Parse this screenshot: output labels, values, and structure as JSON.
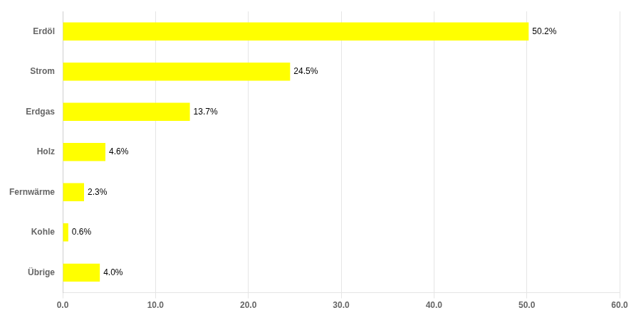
{
  "chart_data": {
    "type": "bar",
    "orientation": "horizontal",
    "categories": [
      "Übrige",
      "Kohle",
      "Fernwärme",
      "Holz",
      "Erdgas",
      "Strom",
      "Erdöl"
    ],
    "values": [
      4.0,
      0.6,
      2.3,
      4.6,
      13.7,
      24.5,
      50.2
    ],
    "value_labels": [
      "4.0%",
      "0.6%",
      "2.3%",
      "4.6%",
      "13.7%",
      "24.5%",
      "50.2%"
    ],
    "data_labels": true,
    "color": "#ffff00",
    "xlim": [
      0,
      60
    ],
    "xticks": [
      {
        "value": 0,
        "label": "0.0"
      },
      {
        "value": 10,
        "label": "10.0"
      },
      {
        "value": 20,
        "label": "20.0"
      },
      {
        "value": 30,
        "label": "30.0"
      },
      {
        "value": 40,
        "label": "40.0"
      },
      {
        "value": 50,
        "label": "50.0"
      },
      {
        "value": 60,
        "label": "60.0"
      }
    ],
    "grid": true
  }
}
